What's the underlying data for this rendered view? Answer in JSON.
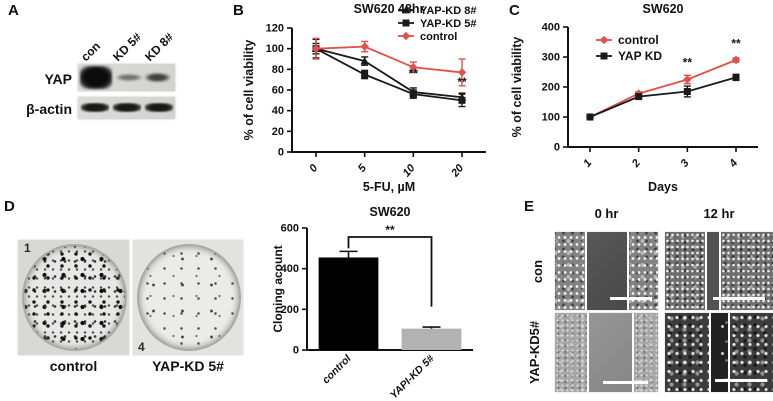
{
  "panelA": {
    "label": "A",
    "lane_labels": [
      "con",
      "KD 5#",
      "KD 8#"
    ],
    "row_labels": [
      "YAP",
      "β-actin"
    ]
  },
  "panelB": {
    "label": "B"
  },
  "panelC": {
    "label": "C"
  },
  "panelD": {
    "label": "D",
    "dishes": [
      {
        "corner_number": "1",
        "caption": "control"
      },
      {
        "corner_number": "4",
        "caption": "YAP-KD 5#"
      }
    ]
  },
  "panelE": {
    "label": "E",
    "col_headers": [
      "0 hr",
      "12 hr"
    ],
    "row_labels": [
      "con",
      "YAP-KD5#"
    ]
  },
  "colors": {
    "control_red": "#e2504c",
    "series_black": "#1a1a1a",
    "kd_bar_gray": "#b2b2b2"
  },
  "chart_data": [
    {
      "type": "line",
      "title": "SW620 48hr",
      "xlabel": "5-FU, µM",
      "ylabel": "% of cell viability",
      "categories": [
        0,
        5,
        10,
        20
      ],
      "ylim": [
        0,
        120
      ],
      "yticks": [
        0,
        20,
        40,
        60,
        80,
        100,
        120
      ],
      "legend_position": "top-right",
      "series": [
        {
          "name": "YAP-KD 8#",
          "color": "#1a1a1a",
          "marker": "triangle",
          "values": [
            100,
            88,
            58,
            53
          ],
          "errors": [
            5,
            4,
            4,
            4
          ]
        },
        {
          "name": "YAP-KD 5#",
          "color": "#1a1a1a",
          "marker": "square",
          "values": [
            100,
            75,
            56,
            50
          ],
          "errors": [
            9,
            4,
            4,
            6
          ]
        },
        {
          "name": "control",
          "color": "#e2504c",
          "marker": "diamond",
          "values": [
            100,
            102,
            82,
            77
          ],
          "errors": [
            10,
            5,
            5,
            13
          ]
        }
      ],
      "annotations": [
        {
          "xi": 2,
          "y": 72,
          "text": "**"
        },
        {
          "xi": 3,
          "y": 64,
          "text": "**"
        }
      ]
    },
    {
      "type": "line",
      "title": "SW620",
      "xlabel": "Days",
      "ylabel": "% of cell viability",
      "categories": [
        1,
        2,
        3,
        4
      ],
      "ylim": [
        0,
        400
      ],
      "yticks": [
        0,
        100,
        200,
        300,
        400
      ],
      "legend_position": "top-left",
      "series": [
        {
          "name": "control",
          "color": "#e2504c",
          "marker": "diamond",
          "values": [
            100,
            178,
            225,
            290
          ],
          "errors": [
            5,
            6,
            14,
            7
          ]
        },
        {
          "name": "YAP KD",
          "color": "#1a1a1a",
          "marker": "square",
          "values": [
            100,
            168,
            185,
            232
          ],
          "errors": [
            5,
            5,
            18,
            10
          ]
        }
      ],
      "annotations": [
        {
          "xi": 2,
          "y": 268,
          "text": "**"
        },
        {
          "xi": 3,
          "y": 332,
          "text": "**"
        }
      ]
    },
    {
      "type": "bar",
      "title": "SW620",
      "xlabel": "",
      "ylabel": "Cloning acount",
      "categories": [
        "control",
        "YAPI-KD 5#"
      ],
      "values": [
        455,
        105
      ],
      "errors": [
        30,
        8
      ],
      "colors": [
        "#000000",
        "#b2b2b2"
      ],
      "ylim": [
        0,
        600
      ],
      "yticks": [
        0,
        200,
        400,
        600
      ],
      "significance": {
        "text": "**",
        "between": [
          "control",
          "YAPI-KD 5#"
        ]
      }
    }
  ]
}
